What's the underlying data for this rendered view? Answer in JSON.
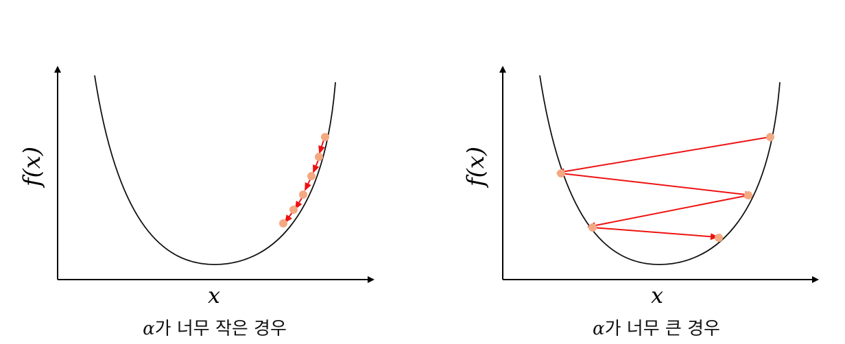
{
  "panels": [
    {
      "ylabel": "f(x)",
      "xlabel": "x",
      "caption_symbol": "α",
      "caption_text": "가 너무 작은 경우"
    },
    {
      "ylabel": "f(x)",
      "xlabel": "x",
      "caption_symbol": "α",
      "caption_text": "가 너무 큰 경우"
    }
  ],
  "colors": {
    "curve": "#111111",
    "steps": "#ee1111",
    "points": "#f4a982"
  }
}
